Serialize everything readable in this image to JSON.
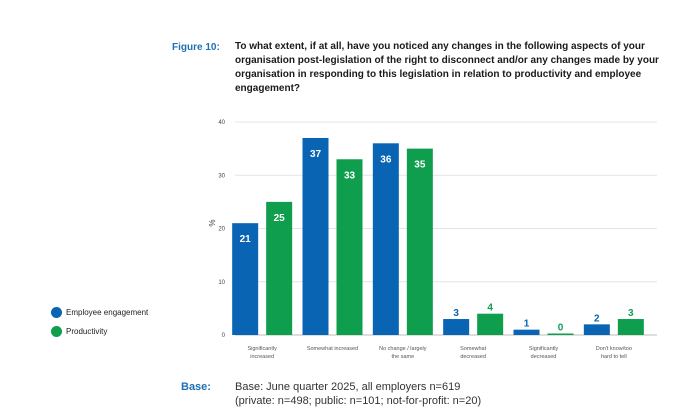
{
  "figure": {
    "label": "Figure 10:",
    "title": "To what extent, if at all, have you noticed any changes in the following aspects of your organisation post-legislation of the right to disconnect and/or any changes made by your organisation in responding to this legislation in relation to productivity and employee engagement?"
  },
  "base": {
    "label": "Base:",
    "line1": "Base: June quarter 2025, all employers n=619",
    "line2": "(private: n=498; public: n=101; not-for-profit: n=20)"
  },
  "colors": {
    "employee_engagement": "#0a64b4",
    "productivity": "#0e9e4d"
  },
  "chart_data": {
    "type": "bar",
    "title": "",
    "xlabel": "",
    "ylabel": "%",
    "ylim": [
      0,
      40
    ],
    "yticks": [
      "0",
      "10",
      "20",
      "30",
      "40"
    ],
    "grid": true,
    "legend_position": "left",
    "categories": [
      [
        "Significantly",
        "increased"
      ],
      [
        "Somewhat increased"
      ],
      [
        "No change / largely",
        "the same"
      ],
      [
        "Somewhat",
        "decreased"
      ],
      [
        "Significantly",
        "decreased"
      ],
      [
        "Don't know/too",
        "hard to tell"
      ]
    ],
    "series": [
      {
        "name": "Employee engagement",
        "values": [
          21,
          37,
          36,
          3,
          1,
          2
        ]
      },
      {
        "name": "Productivity",
        "values": [
          25,
          33,
          35,
          4,
          0,
          3
        ]
      }
    ]
  }
}
